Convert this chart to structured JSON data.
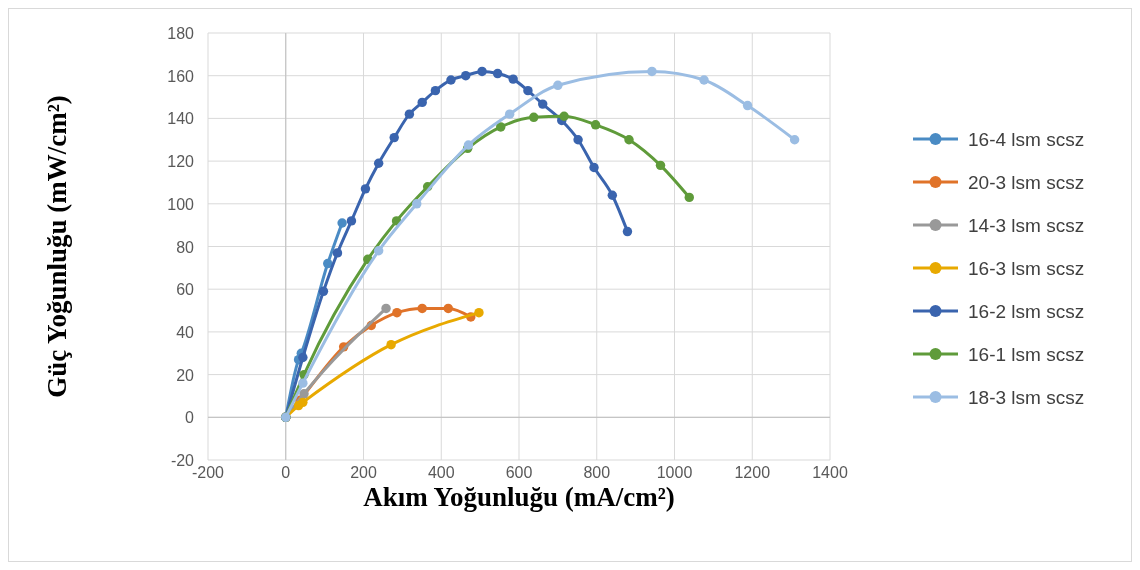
{
  "chart_data": {
    "type": "line",
    "xlabel": "Akım Yoğunluğu (mA/cm²)",
    "ylabel": "Güç Yoğunluğu (mW/cm²)",
    "xlim": [
      -200,
      1400
    ],
    "xticks": [
      -200,
      0,
      200,
      400,
      600,
      800,
      1000,
      1200,
      1400
    ],
    "ylim": [
      -20,
      180
    ],
    "yticks": [
      -20,
      0,
      20,
      40,
      60,
      80,
      100,
      120,
      140,
      160,
      180
    ],
    "grid": true,
    "legend": "right",
    "marker": "circle",
    "series": [
      {
        "name": "16-4 lsm scsz",
        "color": "#4a8bc4",
        "x": [
          0,
          33,
          40,
          108,
          145
        ],
        "values": [
          0,
          27,
          30,
          72,
          91
        ]
      },
      {
        "name": "20-3 lsm scsz",
        "color": "#e07329",
        "x": [
          0,
          36,
          149,
          220,
          286,
          351,
          418,
          476
        ],
        "values": [
          0,
          8,
          33,
          43,
          49,
          51,
          51,
          47
        ]
      },
      {
        "name": "14-3 lsm scsz",
        "color": "#999999",
        "x": [
          0,
          47,
          258
        ],
        "values": [
          0,
          11,
          51
        ]
      },
      {
        "name": "16-3 lsm scsz",
        "color": "#e8a900",
        "x": [
          0,
          33,
          44,
          271,
          497
        ],
        "values": [
          0,
          5.5,
          7,
          34,
          49
        ]
      },
      {
        "name": "16-2 lsm scsz",
        "color": "#3a64ae",
        "x": [
          0,
          44,
          97,
          133,
          169,
          205,
          239,
          279,
          318,
          351,
          385,
          425,
          463,
          505,
          545,
          585,
          623,
          661,
          710,
          752,
          793,
          840,
          879
        ],
        "values": [
          0,
          28,
          59,
          77,
          92,
          107,
          119,
          131,
          142,
          147.5,
          153,
          158,
          160,
          162,
          161,
          158.4,
          153,
          146.7,
          139,
          130,
          117,
          104,
          87
        ]
      },
      {
        "name": "16-1 lsm scsz",
        "color": "#5f9b3a",
        "x": [
          0,
          47,
          211,
          285,
          365,
          468,
          553,
          638,
          716,
          797,
          883,
          964,
          1038
        ],
        "values": [
          0,
          20,
          74,
          92,
          108,
          126,
          136,
          140.5,
          141,
          137,
          130,
          118,
          103
        ]
      },
      {
        "name": "18-3 lsm scsz",
        "color": "#9bbde3",
        "x": [
          0,
          44,
          239,
          337,
          470,
          576,
          700,
          942,
          1076,
          1188,
          1309
        ],
        "values": [
          0,
          16,
          78,
          100,
          127.5,
          142,
          155.5,
          162,
          158,
          146,
          130
        ]
      }
    ]
  }
}
